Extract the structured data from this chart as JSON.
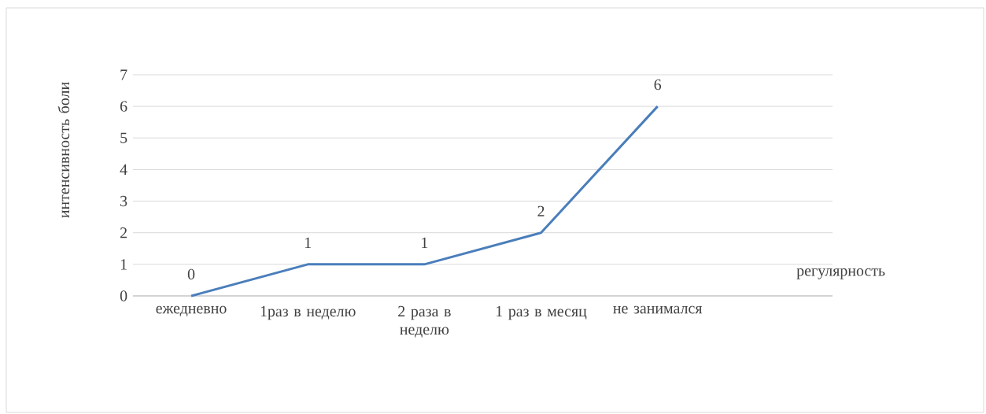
{
  "chart_data": {
    "type": "line",
    "xlabel": "регулярность",
    "ylabel": "интенсивность боли",
    "categories": [
      "ежедневно",
      "1раз в неделю",
      "2 раза в неделю",
      "1 раз в месяц",
      "не занимался",
      null
    ],
    "values": [
      0,
      1,
      1,
      2,
      6,
      null
    ],
    "color": "#4a7ebb",
    "ylim": [
      0,
      7
    ],
    "yticks": [
      0,
      1,
      2,
      3,
      4,
      5,
      6,
      7
    ],
    "grid": "y",
    "data_labels": true
  }
}
